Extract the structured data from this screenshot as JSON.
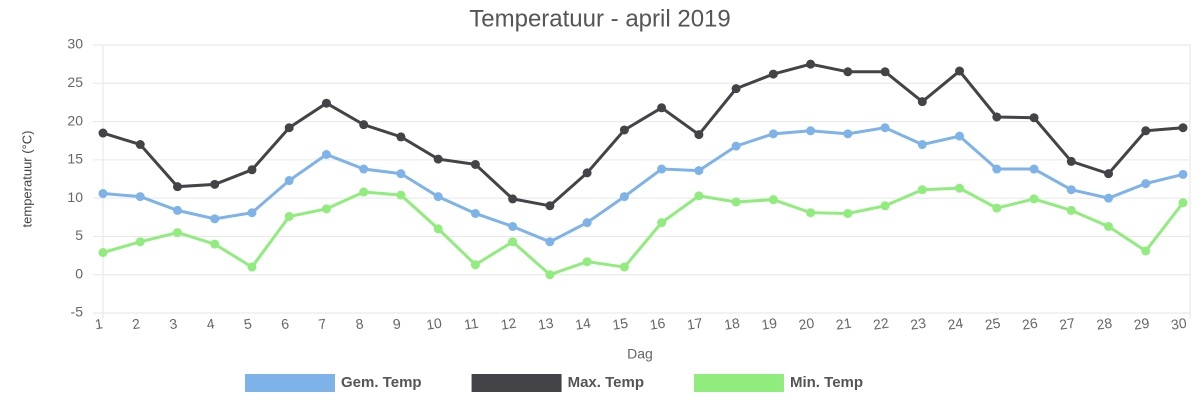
{
  "chart_data": {
    "type": "line",
    "title": "Temperatuur - april 2019",
    "x_label": "Dag",
    "y_label": "temperatuur (°C)",
    "categories": [
      "1",
      "2",
      "3",
      "4",
      "5",
      "6",
      "7",
      "8",
      "9",
      "10",
      "11",
      "12",
      "13",
      "14",
      "15",
      "16",
      "17",
      "18",
      "19",
      "20",
      "21",
      "22",
      "23",
      "24",
      "25",
      "26",
      "27",
      "28",
      "29",
      "30"
    ],
    "series": [
      {
        "name": "Gem. Temp",
        "color": "#7db3e8",
        "values": [
          10.6,
          10.2,
          8.4,
          7.3,
          8.1,
          12.3,
          15.7,
          13.8,
          13.2,
          10.2,
          8,
          6.3,
          4.3,
          6.8,
          10.2,
          13.8,
          13.6,
          16.8,
          18.4,
          18.8,
          18.4,
          19.2,
          17,
          18.1,
          13.8,
          13.8,
          11.1,
          10,
          11.9,
          13.1
        ]
      },
      {
        "name": "Max. Temp",
        "color": "#434348",
        "values": [
          18.5,
          17,
          11.5,
          11.8,
          13.7,
          19.2,
          22.4,
          19.6,
          18,
          15.1,
          14.4,
          9.9,
          9,
          13.3,
          18.9,
          21.8,
          18.3,
          24.3,
          26.2,
          27.5,
          26.5,
          26.5,
          22.6,
          26.6,
          20.6,
          20.5,
          14.8,
          13.2,
          18.8,
          19.2
        ]
      },
      {
        "name": "Min. Temp",
        "color": "#90ed7d",
        "values": [
          2.9,
          4.3,
          5.5,
          4,
          1,
          7.6,
          8.6,
          10.8,
          10.4,
          6,
          1.3,
          4.3,
          0,
          1.7,
          1,
          6.8,
          10.3,
          9.5,
          9.8,
          8.1,
          8,
          9,
          11.1,
          11.3,
          8.7,
          9.9,
          8.4,
          6.3,
          3.1,
          9.4
        ]
      }
    ],
    "ylim": [
      -5,
      30
    ],
    "yticks": [
      -5,
      0,
      5,
      10,
      15,
      20,
      25,
      30
    ],
    "grid": true,
    "legend": "bottom"
  }
}
